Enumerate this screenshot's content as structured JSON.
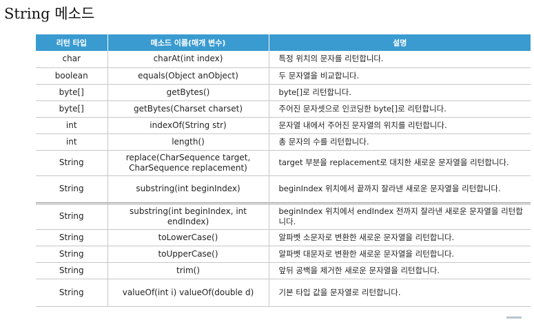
{
  "page": {
    "title": "String 메소드"
  },
  "table": {
    "headers": [
      "리턴 타입",
      "메소드 이름(매개 변수)",
      "설명"
    ],
    "rows": [
      {
        "type": "char",
        "method": "charAt(int index)",
        "desc": "특정 위치의 문자를 리턴합니다."
      },
      {
        "type": "boolean",
        "method": "equals(Object anObject)",
        "desc": "두 문자열을 비교합니다."
      },
      {
        "type": "byte[]",
        "method": "getBytes()",
        "desc": "byte[]로 리턴합니다."
      },
      {
        "type": "byte[]",
        "method": "getBytes(Charset charset)",
        "desc": "주어진 문자셋으로 인코딩한 byte[]로 리턴합니다."
      },
      {
        "type": "int",
        "method": "indexOf(String str)",
        "desc": "문자열 내에서 주어진 문자열의 위치를 리턴합니다."
      },
      {
        "type": "int",
        "method": "length()",
        "desc": "총 문자의 수를 리턴합니다."
      },
      {
        "type": "String",
        "method": "replace(CharSequence target, CharSequence replacement)",
        "desc": "target 부분을 replacement로 대치한 새로운 문자열을 리턴합니다."
      },
      {
        "type": "String",
        "method": "substring(int beginIndex)",
        "desc": "beginIndex 위치에서 끝까지 잘라낸 새로운 문자열을 리턴합니다."
      },
      {
        "type": "String",
        "method": "substring(int beginIndex, int endIndex)",
        "desc": "beginIndex 위치에서 endIndex 전까지 잘라낸 새로운 문자열을 리턴합니다."
      },
      {
        "type": "String",
        "method": "toLowerCase()",
        "desc": "알파벳 소문자로 변환한 새로운 문자열을 리턴합니다."
      },
      {
        "type": "String",
        "method": "toUpperCase()",
        "desc": "알파벳 대문자로 변환한 새로운 문자열을 리턴합니다."
      },
      {
        "type": "String",
        "method": "trim()",
        "desc": "앞뒤 공백을 제거한 새로운 문자열을 리턴합니다."
      },
      {
        "type": "String",
        "method": "valueOf(int i) valueOf(double d)",
        "desc": "기본 타입 값을 문자열로 리턴합니다."
      }
    ]
  }
}
